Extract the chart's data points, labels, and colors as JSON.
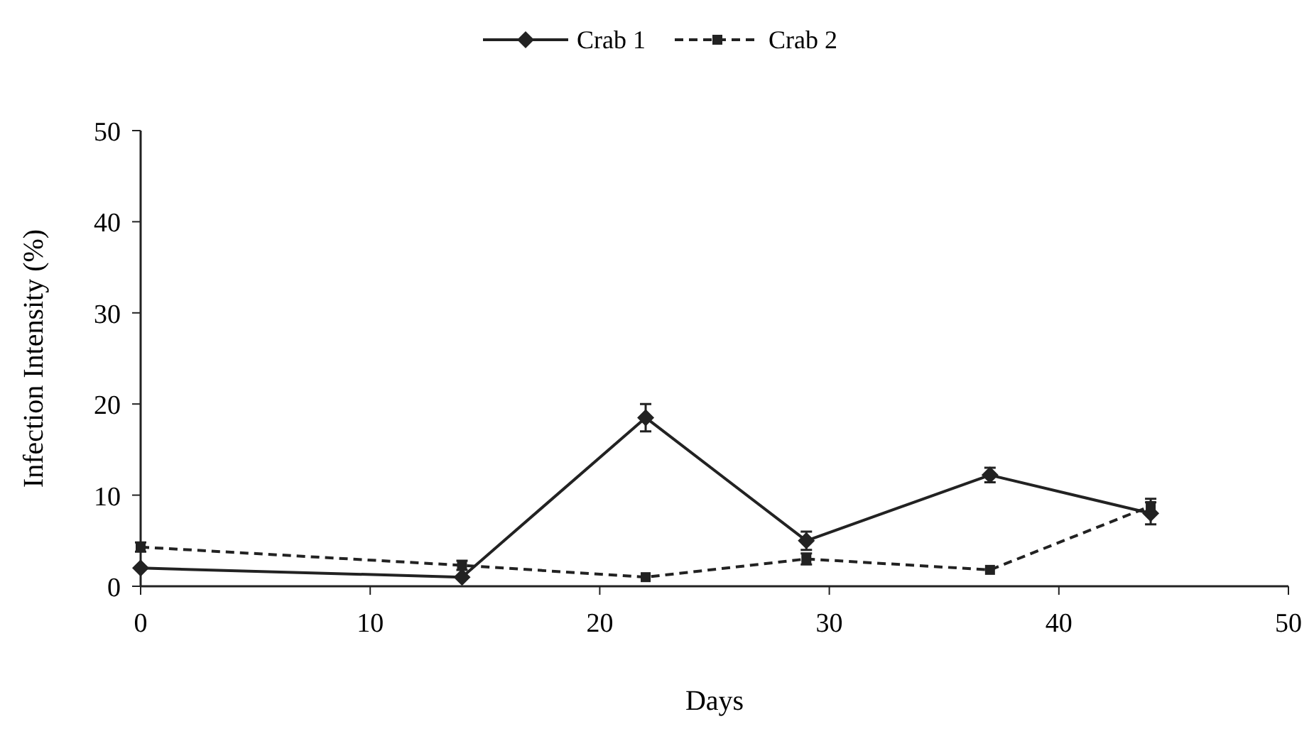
{
  "chart_data": {
    "type": "line",
    "xlabel": "Days",
    "ylabel": "Infection Intensity (%)",
    "xlim": [
      0,
      50
    ],
    "xticks": [
      0,
      10,
      20,
      30,
      40,
      50
    ],
    "ylim": [
      0,
      50
    ],
    "yticks": [
      0,
      10,
      20,
      30,
      40,
      50
    ],
    "grid": false,
    "legend": "top",
    "series": [
      {
        "name": "Crab 1",
        "color": "#222222",
        "x": [
          0,
          14,
          22,
          29,
          37,
          44
        ],
        "values": [
          2,
          1,
          18.5,
          5,
          12.2,
          8
        ],
        "errors": [
          null,
          null,
          1.5,
          1,
          0.8,
          1.2
        ],
        "marker": "diamond",
        "line_style": "solid"
      },
      {
        "name": "Crab 2",
        "color": "#222222",
        "x": [
          0,
          14,
          22,
          29,
          37,
          44
        ],
        "values": [
          4.3,
          2.3,
          1,
          3,
          1.8,
          8.8
        ],
        "errors": [
          0.5,
          0.5,
          null,
          0.6,
          null,
          0.8
        ],
        "marker": "square",
        "line_style": "dashed"
      }
    ]
  }
}
